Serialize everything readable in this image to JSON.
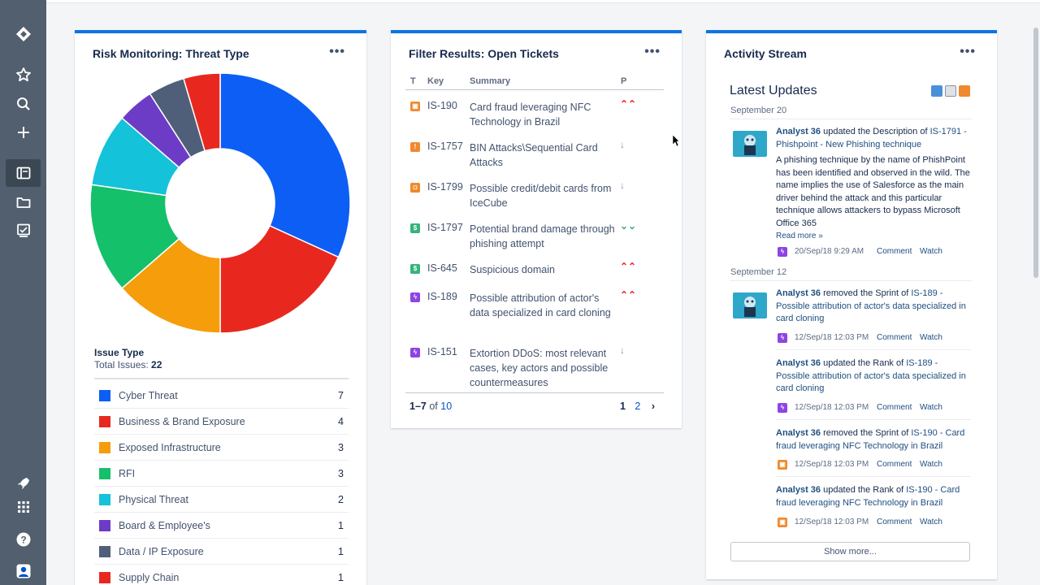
{
  "sidebar": {
    "icons": [
      "jira-logo-icon",
      "star-icon",
      "search-icon",
      "plus-icon",
      "dashboard-icon",
      "folder-icon",
      "board-icon",
      "rocket-icon",
      "app-switcher-icon",
      "help-icon",
      "profile-icon"
    ]
  },
  "gadgets": {
    "risk": {
      "title": "Risk Monitoring: Threat Type",
      "menu": "•••",
      "legend_heading": "Issue Type",
      "total_label": "Total Issues:",
      "total_value": "22",
      "items": [
        {
          "label": "Cyber Threat",
          "count": "7",
          "color": "#0c5ef5"
        },
        {
          "label": "Business & Brand Exposure",
          "count": "4",
          "color": "#e8281f"
        },
        {
          "label": "Exposed Infrastructure",
          "count": "3",
          "color": "#f59d0b"
        },
        {
          "label": "RFI",
          "count": "3",
          "color": "#15c06a"
        },
        {
          "label": "Physical Threat",
          "count": "2",
          "color": "#14c2d9"
        },
        {
          "label": "Board & Employee's",
          "count": "1",
          "color": "#6d3cc7"
        },
        {
          "label": "Data / IP Exposure",
          "count": "1",
          "color": "#505f79"
        },
        {
          "label": "Supply Chain",
          "count": "1",
          "color": "#e8281f"
        }
      ]
    },
    "filter": {
      "title": "Filter Results: Open Tickets",
      "menu": "•••",
      "headers": {
        "t": "T",
        "key": "Key",
        "summary": "Summary",
        "p": "P"
      },
      "rows": [
        {
          "key": "IS-190",
          "summary": "Card fraud leveraging NFC Technology in Brazil",
          "type_color": "#f0892e",
          "type_glyph": "▣",
          "prio": "⌃⌃",
          "prio_color": "#e8281f"
        },
        {
          "key": "IS-1757",
          "summary": "BIN Attacks\\Sequential Card Attacks",
          "type_color": "#f0892e",
          "type_glyph": "!",
          "prio": "↓",
          "prio_color": "#8993a4"
        },
        {
          "key": "IS-1799",
          "summary": "Possible credit/debit cards from IceCube",
          "type_color": "#f0892e",
          "type_glyph": "◘",
          "prio": "↓",
          "prio_color": "#8993a4"
        },
        {
          "key": "IS-1797",
          "summary": "Potential brand damage through phishing attempt",
          "type_color": "#36b37e",
          "type_glyph": "$",
          "prio": "⌄⌄",
          "prio_color": "#36b37e"
        },
        {
          "key": "IS-645",
          "summary": "Suspicious domain",
          "type_color": "#36b37e",
          "type_glyph": "$",
          "prio": "⌃⌃",
          "prio_color": "#e8281f"
        },
        {
          "key": "IS-189",
          "summary": "Possible attribution of actor's data specialized in card cloning",
          "type_color": "#8e44e2",
          "type_glyph": "ϟ",
          "prio": "⌃⌃",
          "prio_color": "#e8281f"
        },
        {
          "key": "IS-151",
          "summary": "Extortion DDoS: most relevant cases, key actors and possible countermeasures",
          "type_color": "#8e44e2",
          "type_glyph": "ϟ",
          "prio": "↓",
          "prio_color": "#8993a4"
        }
      ],
      "footer": {
        "range": "1–7",
        "of": "of",
        "total": "10",
        "page_current": "1",
        "page_next": "2",
        "next_arrow": "›"
      }
    },
    "activity": {
      "title": "Activity Stream",
      "menu": "•••",
      "latest": "Latest Updates",
      "dates": [
        "September 20",
        "September 12"
      ],
      "entries": [
        {
          "who": "Analyst 36",
          "action": " updated the Description of ",
          "link": "IS-1791 - Phishpoint - New Phishing technique",
          "body": "A phishing technique by the name of PhishPoint has been identified and observed in the wild. The name implies the use of Salesforce as the main driver behind the attack and this particular technique allows attackers to bypass Microsoft Office 365",
          "more": "Read more »",
          "time": "20/Sep/18 9:29 AM",
          "icon_color": "#8e44e2",
          "icon_glyph": "ϟ"
        },
        {
          "who": "Analyst 36",
          "action": " removed the Sprint of ",
          "link": "IS-189 - Possible attribution of actor's data specialized in card cloning",
          "time": "12/Sep/18 12:03 PM",
          "icon_color": "#8e44e2",
          "icon_glyph": "ϟ"
        },
        {
          "who": "Analyst 36",
          "action": " updated the Rank of ",
          "link": "IS-189 - Possible attribution of actor's data specialized in card cloning",
          "time": "12/Sep/18 12:03 PM",
          "icon_color": "#8e44e2",
          "icon_glyph": "ϟ"
        },
        {
          "who": "Analyst 36",
          "action": " removed the Sprint of ",
          "link": "IS-190 - Card fraud leveraging NFC Technology in Brazil",
          "time": "12/Sep/18 12:03 PM",
          "icon_color": "#f0892e",
          "icon_glyph": "▣"
        },
        {
          "who": "Analyst 36",
          "action": " updated the Rank of ",
          "link": "IS-190 - Card fraud leveraging NFC Technology in Brazil",
          "time": "12/Sep/18 12:03 PM",
          "icon_color": "#f0892e",
          "icon_glyph": "▣"
        }
      ],
      "comment_label": "Comment",
      "watch_label": "Watch",
      "show_more": "Show more..."
    }
  }
}
